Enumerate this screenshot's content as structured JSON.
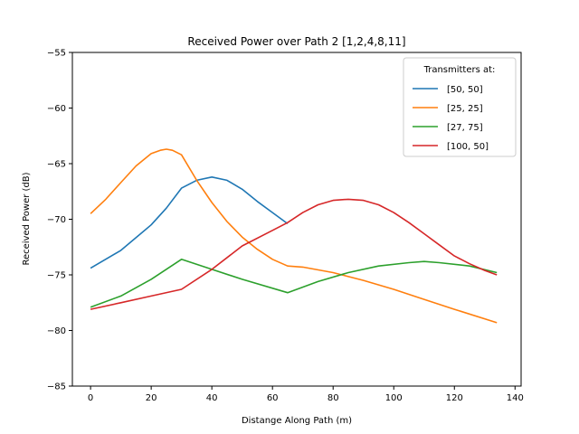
{
  "chart_data": {
    "type": "line",
    "title": "Received Power over Path 2 [1,2,4,8,11]",
    "xlabel": "Distange Along Path (m)",
    "ylabel": "Received Power (dB)",
    "xlim": [
      -6,
      142
    ],
    "ylim": [
      -85,
      -55
    ],
    "xticks": [
      0,
      20,
      40,
      60,
      80,
      100,
      120,
      140
    ],
    "yticks": [
      -85,
      -80,
      -75,
      -70,
      -65,
      -60,
      -55
    ],
    "xtick_labels": [
      "0",
      "20",
      "40",
      "60",
      "80",
      "100",
      "120",
      "140"
    ],
    "ytick_labels": [
      "−85",
      "−80",
      "−75",
      "−70",
      "−65",
      "−60",
      "−55"
    ],
    "grid": false,
    "legend": {
      "title": "Transmitters at:",
      "placement": "top-right"
    },
    "series": [
      {
        "name": "[50, 50]",
        "color": "#1f77b4",
        "x": [
          0,
          10,
          20,
          25,
          30,
          35,
          40,
          45,
          50,
          55,
          60,
          65
        ],
        "y": [
          -74.4,
          -72.8,
          -70.5,
          -69.0,
          -67.2,
          -66.5,
          -66.2,
          -66.5,
          -67.3,
          -68.4,
          -69.4,
          -70.4
        ]
      },
      {
        "name": "[25, 25]",
        "color": "#ff7f0e",
        "x": [
          0,
          5,
          10,
          15,
          20,
          23,
          25,
          27,
          30,
          35,
          40,
          45,
          50,
          55,
          60,
          65,
          70,
          80,
          90,
          100,
          110,
          120,
          134
        ],
        "y": [
          -69.5,
          -68.2,
          -66.7,
          -65.2,
          -64.1,
          -63.8,
          -63.7,
          -63.8,
          -64.2,
          -66.5,
          -68.5,
          -70.2,
          -71.6,
          -72.7,
          -73.6,
          -74.2,
          -74.3,
          -74.8,
          -75.5,
          -76.3,
          -77.2,
          -78.1,
          -79.3
        ]
      },
      {
        "name": "[27, 75]",
        "color": "#2ca02c",
        "x": [
          0,
          10,
          20,
          30,
          40,
          50,
          65,
          75,
          85,
          95,
          105,
          110,
          115,
          125,
          134
        ],
        "y": [
          -77.9,
          -76.9,
          -75.4,
          -73.6,
          -74.5,
          -75.4,
          -76.6,
          -75.6,
          -74.8,
          -74.2,
          -73.9,
          -73.8,
          -73.9,
          -74.2,
          -74.8
        ]
      },
      {
        "name": "[100, 50]",
        "color": "#d62728",
        "x": [
          0,
          10,
          20,
          30,
          40,
          50,
          60,
          65,
          70,
          75,
          80,
          85,
          90,
          95,
          100,
          105,
          110,
          115,
          120,
          125,
          130,
          134
        ],
        "y": [
          -78.1,
          -77.5,
          -76.9,
          -76.3,
          -74.5,
          -72.4,
          -71.0,
          -70.3,
          -69.4,
          -68.7,
          -68.3,
          -68.2,
          -68.3,
          -68.7,
          -69.4,
          -70.3,
          -71.3,
          -72.3,
          -73.3,
          -74.0,
          -74.6,
          -75.0
        ]
      }
    ]
  }
}
